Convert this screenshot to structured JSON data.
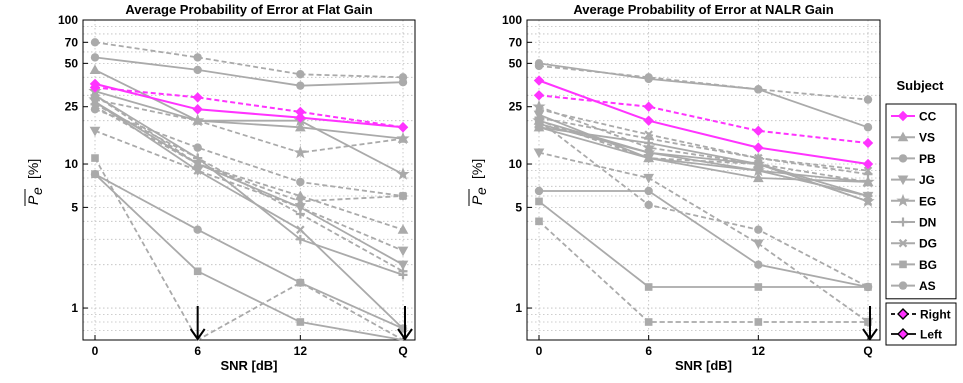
{
  "chart_data": [
    {
      "type": "line",
      "title": "Average Probability of Error at Flat Gain",
      "xlabel": "SNR [dB]",
      "ylabel": "P_e  [%]",
      "ylabel_main": "P",
      "ylabel_sub": "e",
      "ylabel_unit": "[%]",
      "yscale": "log",
      "ylim": [
        0.6,
        100
      ],
      "categories": [
        "0",
        "6",
        "12",
        "Q"
      ],
      "ytick_labels": [
        "1",
        "5",
        "10",
        "25",
        "50",
        "70",
        "100"
      ],
      "ytick_values": [
        1,
        5,
        10,
        25,
        50,
        70,
        100
      ],
      "arrow_positions": [
        "6",
        "Q"
      ],
      "series": [
        {
          "name": "CC",
          "values": {
            "Right": [
              34,
              29,
              23,
              18
            ],
            "Left": [
              36,
              24,
              21,
              18
            ]
          }
        },
        {
          "name": "VS",
          "values": {
            "Right": [
              30,
              10,
              6,
              3.5
            ],
            "Left": [
              45,
              20,
              18,
              15
            ]
          }
        },
        {
          "name": "PB",
          "values": {
            "Right": [
              70,
              55,
              42,
              40
            ],
            "Left": [
              55,
              45,
              35,
              37
            ]
          }
        },
        {
          "name": "JG",
          "values": {
            "Right": [
              17,
              9,
              5,
              2.5
            ],
            "Left": [
              27,
              10,
              5,
              2
            ]
          }
        },
        {
          "name": "EG",
          "values": {
            "Right": [
              28,
              20,
              12,
              15
            ],
            "Left": [
              32,
              20,
              20,
              8.5
            ]
          }
        },
        {
          "name": "DN",
          "values": {
            "Right": [
              26,
              11,
              4.5,
              1.8
            ],
            "Left": [
              30,
              11,
              3,
              1.7
            ]
          }
        },
        {
          "name": "DG",
          "values": {
            "Right": [
              25,
              10,
              5.5,
              6
            ],
            "Left": [
              27,
              9,
              3.5,
              0.72
            ]
          }
        },
        {
          "name": "BG",
          "values": {
            "Right": [
              11,
              0.6,
              1.5,
              0.6
            ],
            "Left": [
              8.5,
              1.8,
              0.8,
              0.6
            ]
          }
        },
        {
          "name": "AS",
          "values": {
            "Right": [
              24,
              13,
              7.5,
              6
            ],
            "Left": [
              8.5,
              3.5,
              1.5,
              0.72
            ]
          }
        }
      ]
    },
    {
      "type": "line",
      "title": "Average Probability of Error at NALR Gain",
      "xlabel": "SNR [dB]",
      "ylabel": "P_e  [%]",
      "ylabel_main": "P",
      "ylabel_sub": "e",
      "ylabel_unit": "[%]",
      "yscale": "log",
      "ylim": [
        0.6,
        100
      ],
      "categories": [
        "0",
        "6",
        "12",
        "Q"
      ],
      "ytick_labels": [
        "1",
        "5",
        "10",
        "25",
        "50",
        "70",
        "100"
      ],
      "ytick_values": [
        1,
        5,
        10,
        25,
        50,
        70,
        100
      ],
      "arrow_positions": [
        "Q"
      ],
      "series": [
        {
          "name": "CC",
          "values": {
            "Right": [
              30,
              25,
              17,
              14
            ],
            "Left": [
              38,
              20,
              13,
              10
            ]
          }
        },
        {
          "name": "VS",
          "values": {
            "Right": [
              20,
              11,
              10,
              7.5
            ],
            "Left": [
              18,
              11,
              8,
              7.5
            ]
          }
        },
        {
          "name": "PB",
          "values": {
            "Right": [
              48,
              40,
              33,
              28
            ],
            "Left": [
              50,
              39,
              33,
              18
            ]
          }
        },
        {
          "name": "JG",
          "values": {
            "Right": [
              12,
              8,
              2.8,
              0.8
            ],
            "Left": [
              22,
              11,
              9,
              6
            ]
          }
        },
        {
          "name": "EG",
          "values": {
            "Right": [
              25,
              13,
              10,
              5.5
            ],
            "Left": [
              20,
              12,
              9,
              7.5
            ]
          }
        },
        {
          "name": "DN",
          "values": {
            "Right": [
              21,
              15,
              11,
              8.5
            ],
            "Left": [
              18,
              14,
              10,
              6
            ]
          }
        },
        {
          "name": "DG",
          "values": {
            "Right": [
              24,
              16,
              11,
              9
            ],
            "Left": [
              19,
              12,
              10,
              5.5
            ]
          }
        },
        {
          "name": "BG",
          "values": {
            "Right": [
              4,
              0.8,
              0.8,
              0.8
            ],
            "Left": [
              5.5,
              1.4,
              1.4,
              1.4
            ]
          }
        },
        {
          "name": "AS",
          "values": {
            "Right": [
              20,
              5.2,
              3.5,
              1.4
            ],
            "Left": [
              6.5,
              6.5,
              2,
              1.4
            ]
          }
        }
      ]
    }
  ],
  "legend": {
    "title": "Subject",
    "entries": [
      "CC",
      "VS",
      "PB",
      "JG",
      "EG",
      "DN",
      "DG",
      "BG",
      "AS"
    ],
    "ear_entries": [
      "Right",
      "Left"
    ]
  },
  "colors": {
    "highlight": "#ff33ff",
    "others": "#aaaaaa",
    "grid": "#bdbdbd",
    "axis": "#000000"
  },
  "markers": {
    "CC": "diamond",
    "VS": "triangle-up",
    "PB": "circle",
    "JG": "triangle-down",
    "EG": "star",
    "DN": "plus",
    "DG": "cross",
    "BG": "square",
    "AS": "circle"
  }
}
